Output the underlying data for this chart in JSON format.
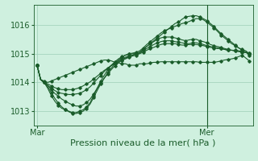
{
  "bg_color": "#cff0df",
  "grid_color": "#9ecfb8",
  "line_color": "#1a5c2a",
  "xlabel": "Pression niveau de la mer( hPa )",
  "xlabel_color": "#1a5c2a",
  "xlabel_fontsize": 8,
  "tick_color": "#1a5c2a",
  "tick_fontsize": 7,
  "yticks": [
    1013,
    1014,
    1015,
    1016
  ],
  "xtick_labels": [
    "Mar",
    "Mer"
  ],
  "xtick_positions": [
    0,
    48
  ],
  "vline_x": 48,
  "series": [
    [
      1014.6,
      1014.1,
      1014.05,
      1014.0,
      1014.05,
      1014.1,
      1014.15,
      1014.2,
      1014.25,
      1014.3,
      1014.35,
      1014.4,
      1014.45,
      1014.5,
      1014.55,
      1014.6,
      1014.65,
      1014.7,
      1014.75,
      1014.78,
      1014.78,
      1014.75,
      1014.7,
      1014.68,
      1014.65,
      1014.65,
      1014.6,
      1014.6,
      1014.6,
      1014.65,
      1014.65,
      1014.65,
      1014.68,
      1014.7,
      1014.7,
      1014.72,
      1014.72,
      1014.72,
      1014.72,
      1014.72,
      1014.72,
      1014.72,
      1014.72,
      1014.72,
      1014.72,
      1014.72,
      1014.7,
      1014.7,
      1014.7,
      1014.7,
      1014.7,
      1014.72,
      1014.75,
      1014.78,
      1014.8,
      1014.82,
      1014.85,
      1014.9,
      1014.95,
      1014.85,
      1014.75
    ],
    [
      1014.6,
      1014.1,
      1014.0,
      1013.8,
      1013.55,
      1013.35,
      1013.2,
      1013.1,
      1013.05,
      1013.0,
      1012.95,
      1012.95,
      1013.0,
      1013.05,
      1013.15,
      1013.3,
      1013.55,
      1013.8,
      1014.05,
      1014.25,
      1014.45,
      1014.6,
      1014.72,
      1014.82,
      1014.9,
      1014.95,
      1014.98,
      1015.0,
      1015.0,
      1015.05,
      1015.15,
      1015.25,
      1015.35,
      1015.45,
      1015.55,
      1015.65,
      1015.75,
      1015.85,
      1015.95,
      1016.05,
      1016.1,
      1016.2,
      1016.28,
      1016.3,
      1016.32,
      1016.32,
      1016.28,
      1016.22,
      1016.15,
      1016.05,
      1015.95,
      1015.82,
      1015.7,
      1015.6,
      1015.5,
      1015.4,
      1015.3,
      1015.2,
      1015.12,
      1015.05,
      1014.95
    ],
    [
      1014.6,
      1014.1,
      1014.0,
      1013.85,
      1013.65,
      1013.45,
      1013.28,
      1013.15,
      1013.05,
      1012.98,
      1012.92,
      1012.92,
      1012.95,
      1013.0,
      1013.1,
      1013.25,
      1013.48,
      1013.72,
      1013.95,
      1014.15,
      1014.35,
      1014.5,
      1014.65,
      1014.78,
      1014.88,
      1014.95,
      1015.0,
      1015.02,
      1015.05,
      1015.1,
      1015.2,
      1015.32,
      1015.42,
      1015.52,
      1015.62,
      1015.72,
      1015.8,
      1015.85,
      1015.9,
      1015.95,
      1016.0,
      1016.05,
      1016.08,
      1016.12,
      1016.18,
      1016.22,
      1016.22,
      1016.18,
      1016.1,
      1016.0,
      1015.9,
      1015.78,
      1015.65,
      1015.55,
      1015.45,
      1015.35,
      1015.28,
      1015.2,
      1015.15,
      1015.1,
      1015.0
    ],
    [
      1014.6,
      1014.1,
      1014.0,
      1013.9,
      1013.75,
      1013.62,
      1013.52,
      1013.42,
      1013.35,
      1013.28,
      1013.22,
      1013.18,
      1013.18,
      1013.22,
      1013.3,
      1013.42,
      1013.6,
      1013.8,
      1013.98,
      1014.15,
      1014.3,
      1014.45,
      1014.58,
      1014.68,
      1014.78,
      1014.85,
      1014.9,
      1014.95,
      1015.0,
      1015.05,
      1015.15,
      1015.25,
      1015.35,
      1015.42,
      1015.5,
      1015.55,
      1015.58,
      1015.58,
      1015.58,
      1015.55,
      1015.52,
      1015.48,
      1015.45,
      1015.48,
      1015.5,
      1015.5,
      1015.45,
      1015.42,
      1015.38,
      1015.32,
      1015.28,
      1015.25,
      1015.22,
      1015.18,
      1015.15,
      1015.12,
      1015.12,
      1015.1,
      1015.08,
      1015.05,
      1015.0
    ],
    [
      1014.6,
      1014.1,
      1014.0,
      1013.9,
      1013.8,
      1013.72,
      1013.65,
      1013.62,
      1013.6,
      1013.58,
      1013.58,
      1013.6,
      1013.62,
      1013.68,
      1013.75,
      1013.85,
      1013.98,
      1014.12,
      1014.25,
      1014.38,
      1014.5,
      1014.6,
      1014.68,
      1014.75,
      1014.82,
      1014.88,
      1014.92,
      1014.95,
      1015.0,
      1015.02,
      1015.1,
      1015.18,
      1015.25,
      1015.32,
      1015.38,
      1015.42,
      1015.45,
      1015.45,
      1015.45,
      1015.42,
      1015.4,
      1015.38,
      1015.35,
      1015.35,
      1015.38,
      1015.38,
      1015.35,
      1015.32,
      1015.28,
      1015.25,
      1015.22,
      1015.2,
      1015.18,
      1015.15,
      1015.12,
      1015.12,
      1015.1,
      1015.08,
      1015.05,
      1015.05,
      1015.02
    ],
    [
      1014.6,
      1014.1,
      1014.0,
      1013.95,
      1013.88,
      1013.82,
      1013.78,
      1013.75,
      1013.75,
      1013.75,
      1013.75,
      1013.78,
      1013.82,
      1013.88,
      1013.95,
      1014.02,
      1014.12,
      1014.22,
      1014.32,
      1014.42,
      1014.5,
      1014.58,
      1014.65,
      1014.72,
      1014.78,
      1014.82,
      1014.88,
      1014.92,
      1014.95,
      1015.0,
      1015.05,
      1015.12,
      1015.18,
      1015.22,
      1015.28,
      1015.32,
      1015.35,
      1015.35,
      1015.35,
      1015.35,
      1015.32,
      1015.3,
      1015.3,
      1015.32,
      1015.32,
      1015.32,
      1015.3,
      1015.28,
      1015.25,
      1015.22,
      1015.2,
      1015.18,
      1015.18,
      1015.15,
      1015.12,
      1015.12,
      1015.1,
      1015.08,
      1015.05,
      1015.05,
      1015.02
    ]
  ],
  "ylim": [
    1012.5,
    1016.7
  ],
  "xlim": [
    -1,
    61
  ],
  "figsize": [
    3.2,
    2.0
  ],
  "dpi": 100
}
